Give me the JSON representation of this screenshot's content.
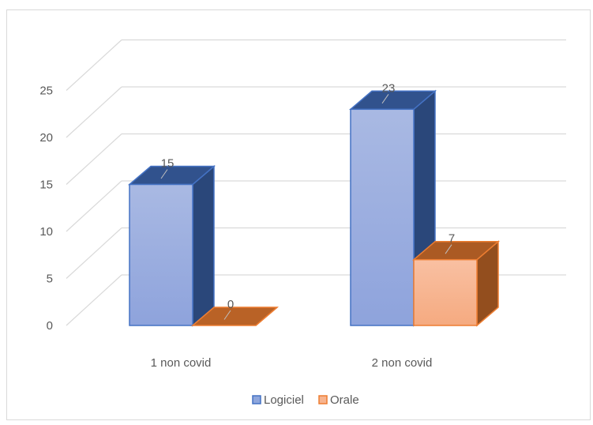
{
  "chart_data": {
    "type": "bar",
    "subtype": "3d-clustered-column",
    "title": "",
    "xlabel": "",
    "ylabel": "",
    "categories": [
      "1 non covid",
      "2 non covid"
    ],
    "series": [
      {
        "name": "Logiciel",
        "values": [
          15,
          23
        ],
        "color": "#8ea6dc",
        "border": "#4472c4"
      },
      {
        "name": "Orale",
        "values": [
          0,
          7
        ],
        "color": "#f7b48f",
        "border": "#ed7d31"
      }
    ],
    "ylim": [
      0,
      25
    ],
    "yticks": [
      "0",
      "5",
      "10",
      "15",
      "20",
      "25"
    ],
    "data_labels": true,
    "grid": true,
    "legend_position": "bottom"
  }
}
